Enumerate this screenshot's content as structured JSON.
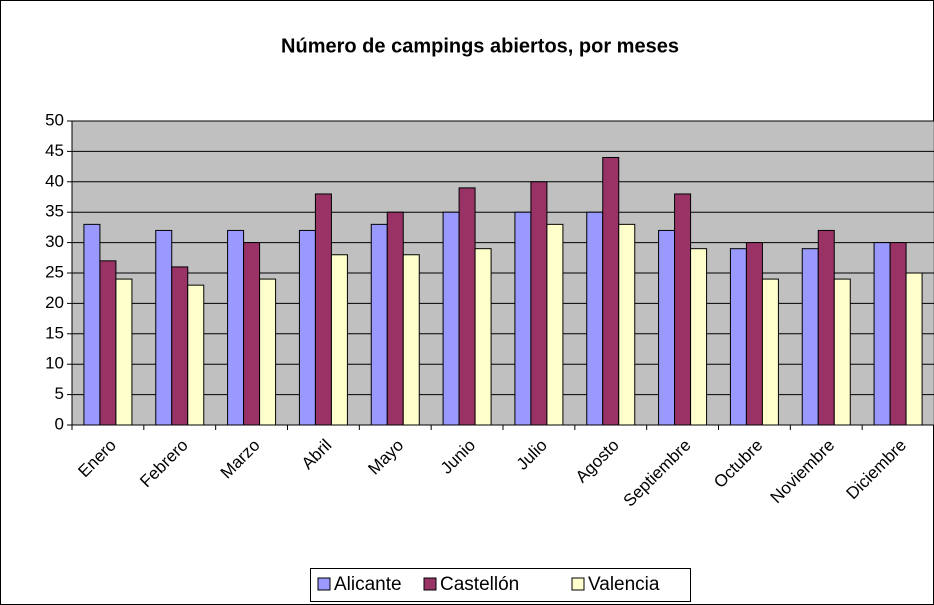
{
  "chart_data": {
    "type": "bar",
    "title": "Número de campings abiertos, por meses",
    "categories": [
      "Enero",
      "Febrero",
      "Marzo",
      "Abril",
      "Mayo",
      "Junio",
      "Julio",
      "Agosto",
      "Septiembre",
      "Octubre",
      "Noviembre",
      "Diciembre"
    ],
    "series": [
      {
        "name": "Alicante",
        "color": "#9999ff",
        "values": [
          33,
          32,
          32,
          32,
          33,
          35,
          35,
          35,
          32,
          29,
          29,
          30
        ]
      },
      {
        "name": "Castellón",
        "color": "#993366",
        "values": [
          27,
          26,
          30,
          38,
          35,
          39,
          40,
          44,
          38,
          30,
          32,
          30
        ]
      },
      {
        "name": "Valencia",
        "color": "#ffffcc",
        "values": [
          24,
          23,
          24,
          28,
          28,
          29,
          33,
          33,
          29,
          24,
          24,
          25
        ]
      }
    ],
    "ylim": [
      0,
      50
    ],
    "yticks": [
      0,
      5,
      10,
      15,
      20,
      25,
      30,
      35,
      40,
      45,
      50
    ],
    "grid": true,
    "legend": "bottom"
  }
}
